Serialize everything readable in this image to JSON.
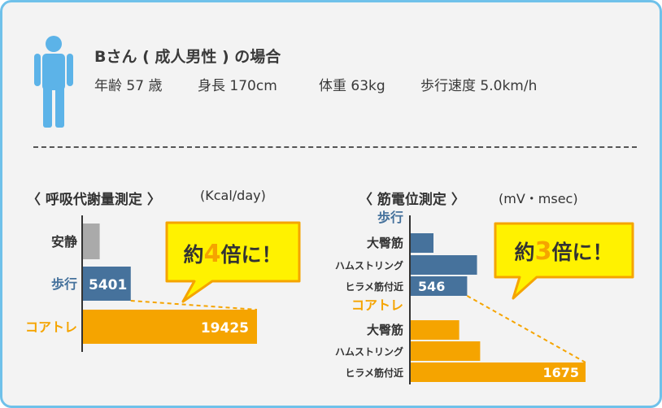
{
  "header": {
    "title": "Bさん ( 成人男性 ) の場合",
    "age": "年齢 57 歳",
    "height": "身長 170cm",
    "weight": "体重 63kg",
    "speed": "歩行速度 5.0km/h"
  },
  "colors": {
    "border": "#6fc1ea",
    "person": "#5cb3e8",
    "gray": "#aaaaaa",
    "blue": "#46729c",
    "orange": "#f5a400",
    "callout_fill": "#fff200",
    "callout_stroke": "#f5a400",
    "callout_text": "#333333",
    "callout_accent": "#f5a400"
  },
  "chart_data": [
    {
      "type": "bar",
      "orientation": "horizontal",
      "title": "〈 呼吸代謝量測定 〉",
      "unit": "(Kcal/day)",
      "categories": [
        "安静",
        "歩行",
        "コアトレ"
      ],
      "values": [
        1950,
        5401,
        19425
      ],
      "value_labels": [
        "",
        "5401",
        "19425"
      ],
      "category_colors": [
        "gray",
        "blue",
        "orange"
      ],
      "callout": {
        "prefix": "約",
        "number": "4",
        "suffix": "倍に！"
      }
    },
    {
      "type": "bar",
      "orientation": "horizontal",
      "title": "〈 筋電位測定 〉",
      "unit": "(mV・msec)",
      "groups": [
        {
          "name": "歩行",
          "color": "blue",
          "categories": [
            "大臀筋",
            "ハムストリング",
            "ヒラメ筋付近"
          ],
          "values": [
            225,
            640,
            546
          ],
          "value_labels": [
            "",
            "",
            "546"
          ]
        },
        {
          "name": "コアトレ",
          "color": "orange",
          "categories": [
            "大臀筋",
            "ハムストリング",
            "ヒラメ筋付近"
          ],
          "values": [
            470,
            670,
            1675
          ],
          "value_labels": [
            "",
            "",
            "1675"
          ]
        }
      ],
      "callout": {
        "prefix": "約",
        "number": "3",
        "suffix": "倍に！"
      }
    }
  ]
}
